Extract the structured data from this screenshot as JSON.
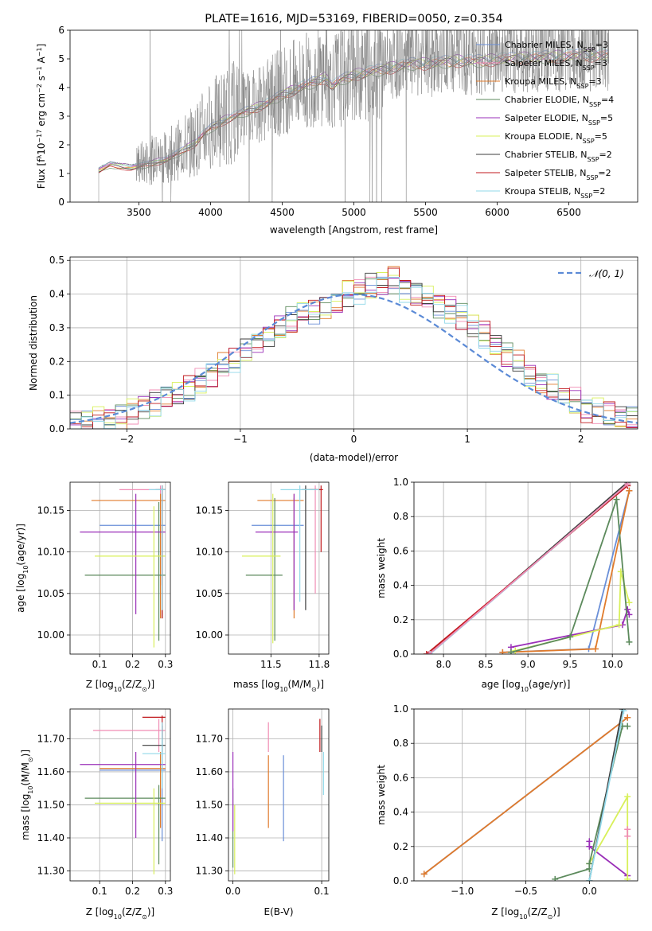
{
  "colors": {
    "chabrier_miles": "#6a8fd8",
    "salpeter_miles": "#f08cb4",
    "kroupa_miles": "#e07b2c",
    "chabrier_elodie": "#5c8a5c",
    "salpeter_elodie": "#9a2fb8",
    "kroupa_elodie": "#d8f05a",
    "chabrier_stelib": "#3c3c3c",
    "salpeter_stelib": "#c0181c",
    "kroupa_stelib": "#90d8e8",
    "data": "#808080",
    "gauss": "#5b8ad6"
  },
  "legend_entries": [
    {
      "key": "chabrier_miles",
      "base": "Chabrier MILES, N",
      "sub": "SSP",
      "tail": "=3"
    },
    {
      "key": "salpeter_miles",
      "base": "Salpeter MILES, N",
      "sub": "SSP",
      "tail": "=3"
    },
    {
      "key": "kroupa_miles",
      "base": "Kroupa MILES, N",
      "sub": "SSP",
      "tail": "=3"
    },
    {
      "key": "chabrier_elodie",
      "base": "Chabrier ELODIE, N",
      "sub": "SSP",
      "tail": "=4"
    },
    {
      "key": "salpeter_elodie",
      "base": "Salpeter ELODIE, N",
      "sub": "SSP",
      "tail": "=5"
    },
    {
      "key": "kroupa_elodie",
      "base": "Kroupa ELODIE, N",
      "sub": "SSP",
      "tail": "=5"
    },
    {
      "key": "chabrier_stelib",
      "base": "Chabrier STELIB, N",
      "sub": "SSP",
      "tail": "=2"
    },
    {
      "key": "salpeter_stelib",
      "base": "Salpeter STELIB, N",
      "sub": "SSP",
      "tail": "=2"
    },
    {
      "key": "kroupa_stelib",
      "base": "Kroupa STELIB, N",
      "sub": "SSP",
      "tail": "=2"
    }
  ],
  "chart_data": [
    {
      "id": "spectrum",
      "type": "line",
      "title": "PLATE=1616, MJD=53169, FIBERID=0050, z=0.354",
      "xlabel": "wavelength [Angstrom, rest frame]",
      "ylabel_parts": [
        "Flux [f",
        "λ",
        "10",
        "−17",
        " erg cm",
        "−2",
        " s",
        "−1",
        " A",
        "−1",
        "]"
      ],
      "xlim": [
        3020,
        6980
      ],
      "ylim": [
        0,
        6
      ],
      "xticks": [
        3500,
        4000,
        4500,
        5000,
        5500,
        6000,
        6500
      ],
      "yticks": [
        0,
        1,
        2,
        3,
        4,
        5,
        6
      ],
      "continuum_x": [
        3220,
        3300,
        3450,
        3500,
        3700,
        3800,
        3900,
        3950,
        4000,
        4100,
        4200,
        4300,
        4400,
        4500,
        4600,
        4700,
        4800,
        4850,
        4900,
        5000,
        5100,
        5200,
        5300,
        5400,
        5500,
        5600,
        5700,
        5800,
        5900,
        6000,
        6200,
        6400,
        6600,
        6800
      ],
      "continuum_y": [
        1.2,
        1.4,
        1.3,
        1.35,
        1.6,
        1.9,
        2.2,
        2.5,
        2.7,
        3.0,
        3.2,
        3.4,
        3.6,
        3.9,
        4.1,
        4.3,
        4.5,
        4.2,
        4.4,
        4.6,
        4.7,
        4.8,
        4.9,
        5.0,
        5.0,
        5.05,
        5.1,
        5.1,
        5.1,
        5.15,
        5.2,
        5.25,
        5.3,
        5.3
      ]
    },
    {
      "id": "residuals",
      "type": "step",
      "xlabel": "(data-model)/error",
      "ylabel": "Normed distribution",
      "xlim": [
        -2.5,
        2.5
      ],
      "ylim": [
        0,
        0.51
      ],
      "xticks": [
        -2,
        -1,
        0,
        1,
        2
      ],
      "yticks": [
        0.0,
        0.1,
        0.2,
        0.3,
        0.4,
        0.5
      ],
      "gauss_label": "𝒩(0, 1)",
      "bin_width": 0.1,
      "bin_start": -2.5,
      "hist_base": [
        0.02,
        0.02,
        0.03,
        0.035,
        0.04,
        0.05,
        0.07,
        0.08,
        0.09,
        0.1,
        0.12,
        0.14,
        0.16,
        0.19,
        0.21,
        0.23,
        0.26,
        0.28,
        0.3,
        0.32,
        0.34,
        0.35,
        0.36,
        0.38,
        0.4,
        0.41,
        0.42,
        0.43,
        0.44,
        0.42,
        0.4,
        0.38,
        0.37,
        0.35,
        0.33,
        0.3,
        0.28,
        0.25,
        0.22,
        0.19,
        0.16,
        0.14,
        0.12,
        0.1,
        0.08,
        0.06,
        0.05,
        0.04,
        0.035,
        0.03
      ]
    },
    {
      "id": "age-vs-z",
      "type": "errorbar",
      "xlabel_parts": [
        "Z [log",
        "10",
        "(Z/Z",
        "⊙",
        ")]"
      ],
      "ylabel_parts": [
        "age  [log",
        "10",
        "(age/yr)]"
      ],
      "xlim": [
        0.01,
        0.315
      ],
      "ylim": [
        9.977,
        10.184
      ],
      "xticks": [
        0.1,
        0.2,
        0.3
      ],
      "yticks": [
        10.0,
        10.05,
        10.1,
        10.15
      ],
      "points": [
        {
          "key": "chabrier_miles",
          "x": 0.29,
          "xlo": 0.1,
          "xhi": 0.3,
          "y": 10.132,
          "ylo": 10.03,
          "yhi": 10.17
        },
        {
          "key": "salpeter_miles",
          "x": 0.285,
          "xlo": 0.16,
          "xhi": 0.3,
          "y": 10.175,
          "ylo": 10.06,
          "yhi": 10.18
        },
        {
          "key": "kroupa_miles",
          "x": 0.285,
          "xlo": 0.075,
          "xhi": 0.3,
          "y": 10.162,
          "ylo": 10.02,
          "yhi": 10.17
        },
        {
          "key": "chabrier_elodie",
          "x": 0.28,
          "xlo": 0.055,
          "xhi": 0.3,
          "y": 10.072,
          "ylo": 9.993,
          "yhi": 10.16
        },
        {
          "key": "salpeter_elodie",
          "x": 0.21,
          "xlo": 0.04,
          "xhi": 0.3,
          "y": 10.124,
          "ylo": 10.025,
          "yhi": 10.17
        },
        {
          "key": "kroupa_elodie",
          "x": 0.265,
          "xlo": 0.085,
          "xhi": 0.3,
          "y": 10.095,
          "ylo": 9.985,
          "yhi": 10.155
        },
        {
          "key": "chabrier_stelib",
          "x": 0.29,
          "xlo": 0.27,
          "xhi": 0.3,
          "y": 10.175,
          "ylo": 10.02,
          "yhi": 10.18
        },
        {
          "key": "salpeter_stelib",
          "x": 0.29,
          "xlo": 0.28,
          "xhi": 0.3,
          "y": 10.175,
          "ylo": 10.02,
          "yhi": 10.18
        },
        {
          "key": "kroupa_stelib",
          "x": 0.29,
          "xlo": 0.25,
          "xhi": 0.3,
          "y": 10.175,
          "ylo": 10.03,
          "yhi": 10.18
        }
      ]
    },
    {
      "id": "age-vs-mass",
      "type": "errorbar",
      "xlabel_parts": [
        "mass [log",
        "10",
        "(M/M",
        "⊙",
        ")]"
      ],
      "ylim": [
        9.977,
        10.184
      ],
      "xlim": [
        11.28,
        11.8
      ],
      "xticks": [
        11.5,
        11.75
      ],
      "yticks": [
        10.0,
        10.05,
        10.1,
        10.15
      ],
      "points": [
        {
          "key": "chabrier_miles",
          "x": 11.62,
          "xlo": 11.4,
          "xhi": 11.67,
          "y": 10.132,
          "ylo": 10.03,
          "yhi": 10.165
        },
        {
          "key": "salpeter_miles",
          "x": 11.73,
          "xlo": 11.67,
          "xhi": 11.76,
          "y": 10.175,
          "ylo": 10.05,
          "yhi": 10.18
        },
        {
          "key": "kroupa_miles",
          "x": 11.62,
          "xlo": 11.43,
          "xhi": 11.67,
          "y": 10.162,
          "ylo": 10.02,
          "yhi": 10.17
        },
        {
          "key": "chabrier_elodie",
          "x": 11.52,
          "xlo": 11.37,
          "xhi": 11.56,
          "y": 10.072,
          "ylo": 9.993,
          "yhi": 10.165
        },
        {
          "key": "salpeter_elodie",
          "x": 11.62,
          "xlo": 11.42,
          "xhi": 11.64,
          "y": 10.124,
          "ylo": 10.03,
          "yhi": 10.17
        },
        {
          "key": "kroupa_elodie",
          "x": 11.51,
          "xlo": 11.35,
          "xhi": 11.55,
          "y": 10.095,
          "ylo": 9.99,
          "yhi": 10.17
        },
        {
          "key": "chabrier_stelib",
          "x": 11.68,
          "xlo": 11.66,
          "xhi": 11.74,
          "y": 10.175,
          "ylo": 10.03,
          "yhi": 10.18
        },
        {
          "key": "salpeter_stelib",
          "x": 11.76,
          "xlo": 11.7,
          "xhi": 11.77,
          "y": 10.175,
          "ylo": 10.1,
          "yhi": 10.18
        },
        {
          "key": "kroupa_stelib",
          "x": 11.65,
          "xlo": 11.55,
          "xhi": 11.75,
          "y": 10.175,
          "ylo": 10.04,
          "yhi": 10.18
        }
      ]
    },
    {
      "id": "weight-vs-age",
      "type": "line",
      "xlabel_parts": [
        "age  [log",
        "10",
        "(age/yr)]"
      ],
      "ylabel": "mass weight",
      "xlim": [
        7.65,
        10.3
      ],
      "ylim": [
        0,
        1
      ],
      "xticks": [
        8.0,
        8.5,
        9.0,
        9.5,
        10.0
      ],
      "yticks": [
        0.0,
        0.2,
        0.4,
        0.6,
        0.8,
        1.0
      ],
      "series": [
        {
          "key": "chabrier_miles",
          "x": [
            8.7,
            9.72,
            10.2
          ],
          "y": [
            0.01,
            0.03,
            0.95
          ]
        },
        {
          "key": "kroupa_miles",
          "x": [
            8.7,
            9.8,
            10.2
          ],
          "y": [
            0.01,
            0.03,
            0.95
          ]
        },
        {
          "key": "salpeter_elodie",
          "x": [
            8.8,
            10.12,
            10.18,
            10.2
          ],
          "y": [
            0.04,
            0.17,
            0.26,
            0.23
          ]
        },
        {
          "key": "kroupa_elodie",
          "x": [
            8.85,
            10.08,
            10.1,
            10.2
          ],
          "y": [
            0.02,
            0.17,
            0.48,
            0.3
          ]
        },
        {
          "key": "chabrier_elodie",
          "x": [
            8.8,
            9.5,
            10.05,
            10.2
          ],
          "y": [
            0.01,
            0.1,
            0.9,
            0.07
          ]
        },
        {
          "key": "chabrier_stelib",
          "x": [
            7.83,
            10.18
          ],
          "y": [
            0.0,
            1.0
          ]
        },
        {
          "key": "salpeter_stelib",
          "x": [
            7.8,
            10.18
          ],
          "y": [
            0.0,
            0.98
          ]
        },
        {
          "key": "kroupa_stelib",
          "x": [
            7.84,
            10.18
          ],
          "y": [
            0.0,
            0.99
          ]
        },
        {
          "key": "salpeter_miles",
          "x": [
            7.83,
            10.18
          ],
          "y": [
            0.0,
            0.99
          ]
        }
      ]
    },
    {
      "id": "mass-vs-z",
      "type": "errorbar",
      "xlabel_parts": [
        "Z [log",
        "10",
        "(Z/Z",
        "⊙",
        ")]"
      ],
      "ylabel_parts": [
        "mass [log",
        "10",
        "(M/M",
        "⊙",
        ")]"
      ],
      "xlim": [
        0.01,
        0.315
      ],
      "ylim": [
        11.27,
        11.79
      ],
      "xticks": [
        0.1,
        0.2,
        0.3
      ],
      "yticks": [
        11.3,
        11.4,
        11.5,
        11.6,
        11.7
      ],
      "points": [
        {
          "key": "chabrier_miles",
          "x": 0.29,
          "xlo": 0.1,
          "xhi": 0.3,
          "y": 11.605,
          "ylo": 11.39,
          "yhi": 11.66
        },
        {
          "key": "salpeter_miles",
          "x": 0.28,
          "xlo": 0.08,
          "xhi": 0.3,
          "y": 11.725,
          "ylo": 11.66,
          "yhi": 11.76
        },
        {
          "key": "kroupa_miles",
          "x": 0.285,
          "xlo": 0.1,
          "xhi": 0.3,
          "y": 11.61,
          "ylo": 11.43,
          "yhi": 11.66
        },
        {
          "key": "chabrier_elodie",
          "x": 0.28,
          "xlo": 0.055,
          "xhi": 0.3,
          "y": 11.52,
          "ylo": 11.32,
          "yhi": 11.56
        },
        {
          "key": "salpeter_elodie",
          "x": 0.21,
          "xlo": 0.04,
          "xhi": 0.3,
          "y": 11.622,
          "ylo": 11.4,
          "yhi": 11.66
        },
        {
          "key": "kroupa_elodie",
          "x": 0.265,
          "xlo": 0.085,
          "xhi": 0.3,
          "y": 11.505,
          "ylo": 11.29,
          "yhi": 11.55
        },
        {
          "key": "chabrier_stelib",
          "x": 0.29,
          "xlo": 0.23,
          "xhi": 0.3,
          "y": 11.68,
          "ylo": 11.66,
          "yhi": 11.74
        },
        {
          "key": "salpeter_stelib",
          "x": 0.29,
          "xlo": 0.23,
          "xhi": 0.3,
          "y": 11.765,
          "ylo": 11.7,
          "yhi": 11.77
        },
        {
          "key": "kroupa_stelib",
          "x": 0.29,
          "xlo": 0.23,
          "xhi": 0.3,
          "y": 11.655,
          "ylo": 11.55,
          "yhi": 11.75
        }
      ]
    },
    {
      "id": "mass-vs-ebv",
      "type": "errorbar",
      "xlabel": "E(B-V)",
      "xlim": [
        -0.005,
        0.108
      ],
      "ylim": [
        11.27,
        11.79
      ],
      "xticks": [
        0.0,
        0.1
      ],
      "yticks": [
        11.3,
        11.4,
        11.5,
        11.6,
        11.7
      ],
      "points": [
        {
          "key": "chabrier_miles",
          "x": 0.057,
          "y": 11.55,
          "ylo": 11.39,
          "yhi": 11.65
        },
        {
          "key": "salpeter_miles",
          "x": 0.04,
          "y": 11.72,
          "ylo": 11.66,
          "yhi": 11.75
        },
        {
          "key": "kroupa_miles",
          "x": 0.04,
          "y": 11.55,
          "ylo": 11.43,
          "yhi": 11.65
        },
        {
          "key": "chabrier_elodie",
          "x": 0.0,
          "y": 11.45,
          "ylo": 11.31,
          "yhi": 11.55
        },
        {
          "key": "salpeter_elodie",
          "x": 0.0,
          "y": 11.55,
          "ylo": 11.42,
          "yhi": 11.66
        },
        {
          "key": "kroupa_elodie",
          "x": 0.002,
          "y": 11.4,
          "ylo": 11.29,
          "yhi": 11.5
        },
        {
          "key": "chabrier_stelib",
          "x": 0.1,
          "y": 11.68,
          "ylo": 11.66,
          "yhi": 11.74
        },
        {
          "key": "salpeter_stelib",
          "x": 0.098,
          "y": 11.72,
          "ylo": 11.66,
          "yhi": 11.76
        },
        {
          "key": "kroupa_stelib",
          "x": 0.102,
          "y": 11.6,
          "ylo": 11.53,
          "yhi": 11.66
        }
      ]
    },
    {
      "id": "weight-vs-z",
      "type": "line",
      "xlabel_parts": [
        "Z [log",
        "10",
        "(Z/Z",
        "⊙",
        ")]"
      ],
      "ylabel": "mass weight",
      "xlim": [
        -1.38,
        0.38
      ],
      "ylim": [
        0,
        1
      ],
      "xticks": [
        -1.0,
        -0.5,
        0.0
      ],
      "yticks": [
        0.0,
        0.2,
        0.4,
        0.6,
        0.8,
        1.0
      ],
      "series": [
        {
          "key": "chabrier_miles",
          "x": [
            -1.3,
            0.3
          ],
          "y": [
            0.04,
            0.95
          ]
        },
        {
          "key": "kroupa_miles",
          "x": [
            -1.3,
            0.3
          ],
          "y": [
            0.04,
            0.95
          ]
        },
        {
          "key": "salpeter_elodie",
          "x": [
            0.0,
            0.0,
            0.3
          ],
          "y": [
            0.23,
            0.2,
            0.03
          ]
        },
        {
          "key": "kroupa_elodie",
          "x": [
            0.0,
            0.3,
            0.3
          ],
          "y": [
            0.1,
            0.49,
            0.01
          ]
        },
        {
          "key": "chabrier_elodie",
          "x": [
            -0.27,
            0.0,
            0.0,
            0.26,
            0.3
          ],
          "y": [
            0.01,
            0.07,
            0.1,
            0.9,
            0.9
          ]
        },
        {
          "key": "chabrier_stelib",
          "x": [
            0.0,
            0.26
          ],
          "y": [
            0.0,
            1.0
          ]
        },
        {
          "key": "kroupa_stelib",
          "x": [
            0.0,
            0.27
          ],
          "y": [
            0.0,
            0.99
          ]
        },
        {
          "key": "salpeter_miles",
          "x": [
            0.3,
            0.3
          ],
          "y": [
            0.3,
            0.26
          ]
        }
      ]
    }
  ]
}
